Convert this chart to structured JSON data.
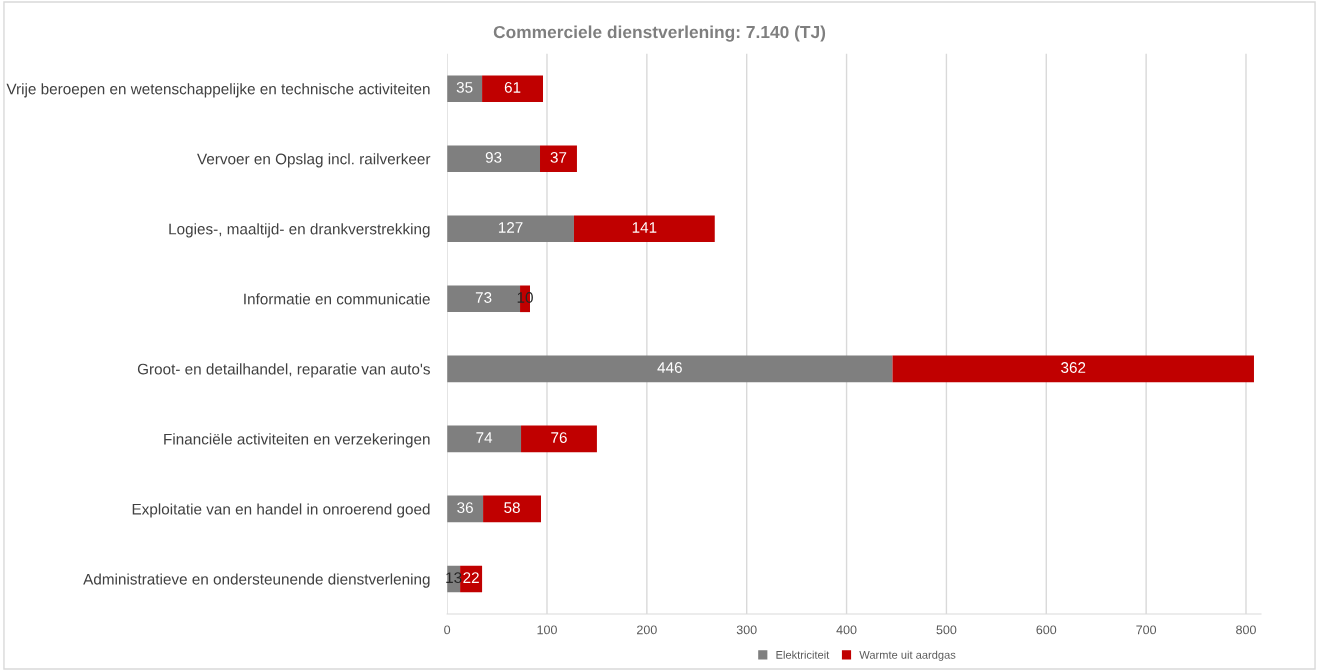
{
  "chart_data": {
    "type": "bar",
    "orientation": "horizontal",
    "stacked": true,
    "title": "Commerciele dienstverlening: 7.140 (TJ)",
    "categories": [
      "Vrije beroepen en wetenschappelijke en technische activiteiten",
      "Vervoer en Opslag incl. railverkeer",
      "Logies-, maaltijd- en drankverstrekking",
      "Informatie en communicatie",
      "Groot- en detailhandel, reparatie van auto's",
      "Financiële activiteiten en verzekeringen",
      "Exploitatie van en handel in onroerend goed",
      "Administratieve en ondersteunende dienstverlening"
    ],
    "series": [
      {
        "name": "Elektriciteit",
        "color": "#7f7f7f",
        "values": [
          35,
          93,
          127,
          73,
          446,
          74,
          36,
          13
        ]
      },
      {
        "name": "Warmte uit aardgas",
        "color": "#c00000",
        "values": [
          61,
          37,
          141,
          10,
          362,
          76,
          58,
          22
        ]
      }
    ],
    "xlim": [
      0,
      815
    ],
    "xticks": [
      0,
      100,
      200,
      300,
      400,
      500,
      600,
      700,
      800
    ],
    "grid": "x",
    "legend": "bottom",
    "data_labels": true
  }
}
